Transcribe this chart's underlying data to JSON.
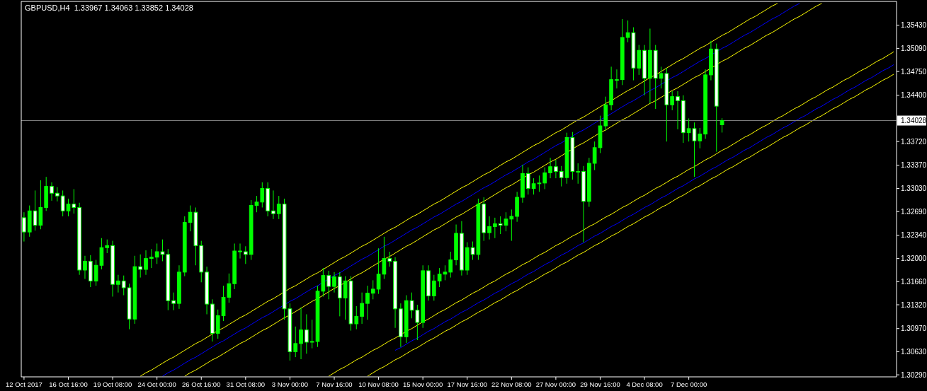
{
  "chart_data": {
    "type": "candlestick",
    "title": "GBPUSD,H4  1.33967 1.34063 1.33852 1.34028",
    "color": "#00ff00",
    "categories": [
      "12 Oct 2017",
      null,
      null,
      null,
      null,
      null,
      null,
      null,
      "16 Oct 16:00",
      null,
      null,
      null,
      null,
      null,
      null,
      null,
      "19 Oct 08:00",
      null,
      null,
      null,
      null,
      null,
      null,
      null,
      "24 Oct 00:00",
      null,
      null,
      null,
      null,
      null,
      null,
      null,
      "26 Oct 16:00",
      null,
      null,
      null,
      null,
      null,
      null,
      null,
      "31 Oct 08:00",
      null,
      null,
      null,
      null,
      null,
      null,
      null,
      "3 Nov 00:00",
      null,
      null,
      null,
      null,
      null,
      null,
      null,
      "7 Nov 16:00",
      null,
      null,
      null,
      null,
      null,
      null,
      null,
      "10 Nov 08:00",
      null,
      null,
      null,
      null,
      null,
      null,
      null,
      "15 Nov 00:00",
      null,
      null,
      null,
      null,
      null,
      null,
      null,
      "17 Nov 16:00",
      null,
      null,
      null,
      null,
      null,
      null,
      null,
      "22 Nov 08:00",
      null,
      null,
      null,
      null,
      null,
      null,
      null,
      "27 Nov 00:00",
      null,
      null,
      null,
      null,
      null,
      null,
      null,
      "29 Nov 16:00",
      null,
      null,
      null,
      null,
      null,
      null,
      null,
      "4 Dec 08:00",
      null,
      null,
      null,
      null,
      null,
      null,
      null,
      "7 Dec 00:00",
      null,
      null,
      null,
      null,
      null,
      null,
      null,
      null,
      null,
      null,
      null,
      null,
      null,
      null,
      null,
      null,
      null,
      null,
      null,
      null,
      null,
      null,
      null,
      null,
      null,
      null,
      null,
      null,
      null,
      null,
      null,
      null,
      null,
      null,
      null,
      null,
      null
    ],
    "ohlc": [
      [
        1.326,
        1.3268,
        1.3225,
        1.3239
      ],
      [
        1.3239,
        1.3278,
        1.3232,
        1.327
      ],
      [
        1.327,
        1.33,
        1.3241,
        1.3249
      ],
      [
        1.3249,
        1.3315,
        1.3243,
        1.3275
      ],
      [
        1.3275,
        1.332,
        1.327,
        1.3306
      ],
      [
        1.3306,
        1.3312,
        1.3285,
        1.3296
      ],
      [
        1.3296,
        1.3305,
        1.3284,
        1.3292
      ],
      [
        1.3292,
        1.33,
        1.3262,
        1.327
      ],
      [
        1.327,
        1.3288,
        1.3262,
        1.328
      ],
      [
        1.328,
        1.3302,
        1.3266,
        1.3275
      ],
      [
        1.3275,
        1.3282,
        1.3176,
        1.3183
      ],
      [
        1.3183,
        1.3204,
        1.317,
        1.3196
      ],
      [
        1.3196,
        1.3205,
        1.3158,
        1.3167
      ],
      [
        1.3167,
        1.3198,
        1.316,
        1.319
      ],
      [
        1.319,
        1.323,
        1.3184,
        1.3216
      ],
      [
        1.3216,
        1.3228,
        1.3208,
        1.3219
      ],
      [
        1.3219,
        1.3226,
        1.3144,
        1.3162
      ],
      [
        1.3162,
        1.3176,
        1.315,
        1.3167
      ],
      [
        1.3167,
        1.3175,
        1.3146,
        1.3157
      ],
      [
        1.3157,
        1.3163,
        1.3096,
        1.3111
      ],
      [
        1.3111,
        1.3204,
        1.3104,
        1.3188
      ],
      [
        1.3188,
        1.3206,
        1.3172,
        1.3184
      ],
      [
        1.3184,
        1.3212,
        1.3176,
        1.32
      ],
      [
        1.32,
        1.3214,
        1.3186,
        1.3202
      ],
      [
        1.3202,
        1.3222,
        1.3192,
        1.321
      ],
      [
        1.321,
        1.3228,
        1.3196,
        1.3206
      ],
      [
        1.3206,
        1.3214,
        1.3124,
        1.3138
      ],
      [
        1.3138,
        1.315,
        1.3124,
        1.3134
      ],
      [
        1.3134,
        1.319,
        1.3126,
        1.318
      ],
      [
        1.318,
        1.3262,
        1.3174,
        1.3253
      ],
      [
        1.3253,
        1.3278,
        1.324,
        1.3268
      ],
      [
        1.3268,
        1.3275,
        1.319,
        1.3219
      ],
      [
        1.3219,
        1.3226,
        1.3165,
        1.318
      ],
      [
        1.318,
        1.3188,
        1.3118,
        1.3133
      ],
      [
        1.3133,
        1.314,
        1.3078,
        1.309
      ],
      [
        1.309,
        1.3125,
        1.3082,
        1.3116
      ],
      [
        1.3116,
        1.316,
        1.3108,
        1.3143
      ],
      [
        1.3143,
        1.3178,
        1.3135,
        1.3163
      ],
      [
        1.3163,
        1.3222,
        1.3155,
        1.3211
      ],
      [
        1.3211,
        1.3222,
        1.32,
        1.321
      ],
      [
        1.321,
        1.3218,
        1.3192,
        1.3206
      ],
      [
        1.3206,
        1.3286,
        1.3198,
        1.3278
      ],
      [
        1.3278,
        1.3292,
        1.3268,
        1.3283
      ],
      [
        1.3283,
        1.3312,
        1.3275,
        1.3303
      ],
      [
        1.3303,
        1.3312,
        1.3262,
        1.327
      ],
      [
        1.327,
        1.33,
        1.3258,
        1.3266
      ],
      [
        1.3266,
        1.3292,
        1.3258,
        1.328
      ],
      [
        1.328,
        1.3288,
        1.311,
        1.3126
      ],
      [
        1.3126,
        1.3134,
        1.305,
        1.3063
      ],
      [
        1.3063,
        1.31,
        1.3055,
        1.3075
      ],
      [
        1.3075,
        1.3128,
        1.3052,
        1.3095
      ],
      [
        1.3095,
        1.3118,
        1.306,
        1.3077
      ],
      [
        1.3077,
        1.311,
        1.3068,
        1.3078
      ],
      [
        1.3078,
        1.316,
        1.307,
        1.3152
      ],
      [
        1.3152,
        1.3186,
        1.3144,
        1.3175
      ],
      [
        1.3175,
        1.3182,
        1.314,
        1.3159
      ],
      [
        1.3159,
        1.318,
        1.315,
        1.3173
      ],
      [
        1.3173,
        1.318,
        1.3115,
        1.3142
      ],
      [
        1.3142,
        1.3174,
        1.311,
        1.3167
      ],
      [
        1.3167,
        1.3174,
        1.3094,
        1.3104
      ],
      [
        1.3104,
        1.313,
        1.3096,
        1.3115
      ],
      [
        1.3115,
        1.315,
        1.3104,
        1.3134
      ],
      [
        1.3134,
        1.316,
        1.311,
        1.3149
      ],
      [
        1.3149,
        1.3168,
        1.314,
        1.3155
      ],
      [
        1.3155,
        1.3215,
        1.3148,
        1.3177
      ],
      [
        1.3177,
        1.3232,
        1.317,
        1.32
      ],
      [
        1.32,
        1.321,
        1.3188,
        1.3196
      ],
      [
        1.3196,
        1.3202,
        1.3098,
        1.3126
      ],
      [
        1.3126,
        1.3134,
        1.307,
        1.3085
      ],
      [
        1.3085,
        1.3146,
        1.3076,
        1.3138
      ],
      [
        1.3138,
        1.315,
        1.3112,
        1.3124
      ],
      [
        1.3124,
        1.3132,
        1.308,
        1.3106
      ],
      [
        1.3106,
        1.319,
        1.3098,
        1.3182
      ],
      [
        1.3182,
        1.319,
        1.3138,
        1.3145
      ],
      [
        1.3145,
        1.3176,
        1.3138,
        1.3167
      ],
      [
        1.3167,
        1.3186,
        1.3158,
        1.3177
      ],
      [
        1.3177,
        1.319,
        1.3168,
        1.318
      ],
      [
        1.318,
        1.321,
        1.3172,
        1.3198
      ],
      [
        1.3198,
        1.325,
        1.319,
        1.3237
      ],
      [
        1.3237,
        1.3255,
        1.3175,
        1.3183
      ],
      [
        1.3183,
        1.3224,
        1.3176,
        1.3216
      ],
      [
        1.3216,
        1.3225,
        1.3198,
        1.3206
      ],
      [
        1.3206,
        1.3288,
        1.3198,
        1.328
      ],
      [
        1.328,
        1.329,
        1.3226,
        1.3238
      ],
      [
        1.3238,
        1.3262,
        1.3228,
        1.3247
      ],
      [
        1.3247,
        1.326,
        1.323,
        1.3251
      ],
      [
        1.3251,
        1.3262,
        1.3236,
        1.3249
      ],
      [
        1.3249,
        1.3268,
        1.324,
        1.3258
      ],
      [
        1.3258,
        1.3272,
        1.3226,
        1.3262
      ],
      [
        1.3262,
        1.3298,
        1.3254,
        1.329
      ],
      [
        1.329,
        1.3338,
        1.3282,
        1.3325
      ],
      [
        1.3325,
        1.3334,
        1.3294,
        1.3303
      ],
      [
        1.3303,
        1.3318,
        1.3294,
        1.331
      ],
      [
        1.331,
        1.3322,
        1.3298,
        1.3311
      ],
      [
        1.3311,
        1.3334,
        1.3302,
        1.3326
      ],
      [
        1.3326,
        1.3348,
        1.3318,
        1.3335
      ],
      [
        1.3335,
        1.3345,
        1.3318,
        1.3328
      ],
      [
        1.3328,
        1.3336,
        1.3306,
        1.3319
      ],
      [
        1.3319,
        1.3385,
        1.331,
        1.3378
      ],
      [
        1.3378,
        1.3386,
        1.3316,
        1.3328
      ],
      [
        1.3328,
        1.334,
        1.331,
        1.3328
      ],
      [
        1.3328,
        1.3336,
        1.3224,
        1.3284
      ],
      [
        1.3284,
        1.3348,
        1.3276,
        1.334
      ],
      [
        1.334,
        1.3372,
        1.333,
        1.3363
      ],
      [
        1.3363,
        1.341,
        1.3355,
        1.3395
      ],
      [
        1.3395,
        1.3438,
        1.3388,
        1.3426
      ],
      [
        1.3426,
        1.3482,
        1.3418,
        1.3463
      ],
      [
        1.3463,
        1.3478,
        1.345,
        1.3463
      ],
      [
        1.3463,
        1.3552,
        1.3455,
        1.3525
      ],
      [
        1.3525,
        1.355,
        1.3518,
        1.3532
      ],
      [
        1.3532,
        1.354,
        1.3462,
        1.348
      ],
      [
        1.348,
        1.3514,
        1.347,
        1.3506
      ],
      [
        1.3506,
        1.3514,
        1.344,
        1.3465
      ],
      [
        1.3465,
        1.3538,
        1.3428,
        1.3506
      ],
      [
        1.3506,
        1.3514,
        1.342,
        1.3465
      ],
      [
        1.3465,
        1.3482,
        1.345,
        1.3472
      ],
      [
        1.3472,
        1.348,
        1.3372,
        1.3426
      ],
      [
        1.3426,
        1.3446,
        1.3418,
        1.3438
      ],
      [
        1.3438,
        1.3446,
        1.339,
        1.3432
      ],
      [
        1.3432,
        1.344,
        1.337,
        1.3385
      ],
      [
        1.3385,
        1.3406,
        1.3372,
        1.3391
      ],
      [
        1.3391,
        1.34,
        1.332,
        1.3373
      ],
      [
        1.3373,
        1.3392,
        1.3362,
        1.3383
      ],
      [
        1.3383,
        1.3478,
        1.3376,
        1.347
      ],
      [
        1.347,
        1.352,
        1.3462,
        1.3508
      ],
      [
        1.3508,
        1.3516,
        1.3357,
        1.3424
      ],
      [
        1.33967,
        1.34063,
        1.33852,
        1.34028
      ],
      null,
      null,
      null,
      null,
      null,
      null,
      null,
      null,
      null,
      null,
      null,
      null,
      null,
      null,
      null,
      null,
      null,
      null,
      null,
      null,
      null,
      null,
      null,
      null,
      null,
      null,
      null,
      null,
      null,
      null,
      null
    ],
    "series": [
      {
        "type": "line",
        "color": "#ffff00",
        "values": [
          null,
          null,
          null,
          null,
          null,
          null,
          null,
          null,
          null,
          null,
          null,
          null,
          null,
          null,
          null,
          null,
          null,
          null,
          null,
          null,
          null,
          1.3027,
          1.3032,
          1.3036,
          1.3041,
          1.3046,
          1.3051,
          1.3055,
          1.306,
          1.3065,
          1.307,
          1.3075,
          1.3079,
          1.3084,
          1.3089,
          1.3094,
          1.3098,
          1.3103,
          1.3108,
          1.3113,
          1.3117,
          1.3122,
          1.3127,
          1.3132,
          1.3137,
          1.3141,
          1.3146,
          1.3151,
          1.3156,
          1.316,
          1.3165,
          1.317,
          1.3175,
          1.3179,
          1.3184,
          1.3189,
          1.3194,
          1.3199,
          1.3203,
          1.3208,
          1.3213,
          1.3218,
          1.3222,
          1.3227,
          1.3232,
          1.3237,
          1.3242,
          1.3246,
          1.3251,
          1.3256,
          1.3261,
          1.3265,
          1.327,
          1.3275,
          1.328,
          1.3284,
          1.3289,
          1.3294,
          1.3299,
          1.3304,
          1.3308,
          1.3313,
          1.3318,
          1.3323,
          1.3327,
          1.3332,
          1.3337,
          1.3342,
          1.3346,
          1.3351,
          1.3356,
          1.3361,
          1.3366,
          1.337,
          1.3375,
          1.338,
          1.3385,
          1.3389,
          1.3394,
          1.3399,
          1.3404,
          1.3408,
          1.3413,
          1.3418,
          1.3423,
          1.3428,
          1.3432,
          1.3437,
          1.3442,
          1.3447,
          1.3451,
          1.3456,
          1.3461,
          1.3466,
          1.347,
          1.3475,
          1.348,
          1.3485,
          1.349,
          1.3494,
          1.3499,
          1.3504,
          1.3509,
          1.3513,
          1.3518,
          1.3523,
          1.3528,
          1.3532,
          1.3537,
          1.3542,
          1.3547,
          1.3552,
          1.3556,
          1.3561,
          1.3566,
          1.3571,
          1.3575,
          null,
          null,
          null,
          null,
          null,
          null,
          null,
          null,
          null,
          null,
          null,
          null,
          null,
          null,
          null,
          null,
          null,
          null,
          null,
          null,
          null
        ]
      },
      {
        "type": "line",
        "color": "#0000ff",
        "values": [
          null,
          null,
          null,
          null,
          null,
          null,
          null,
          null,
          null,
          null,
          null,
          null,
          null,
          null,
          null,
          null,
          null,
          null,
          null,
          null,
          null,
          null,
          null,
          null,
          null,
          1.3027,
          1.3032,
          1.3036,
          1.3041,
          1.3046,
          1.3051,
          1.3055,
          1.306,
          1.3065,
          1.307,
          1.3075,
          1.3079,
          1.3084,
          1.3089,
          1.3094,
          1.3098,
          1.3103,
          1.3108,
          1.3113,
          1.3117,
          1.3122,
          1.3127,
          1.3132,
          1.3137,
          1.3141,
          1.3146,
          1.3151,
          1.3156,
          1.316,
          1.3165,
          1.317,
          1.3175,
          1.3179,
          1.3184,
          1.3189,
          1.3194,
          1.3199,
          1.3203,
          1.3208,
          1.3213,
          1.3218,
          1.3222,
          1.3227,
          1.3232,
          1.3237,
          1.3242,
          1.3246,
          1.3251,
          1.3256,
          1.3261,
          1.3265,
          1.327,
          1.3275,
          1.328,
          1.3284,
          1.3289,
          1.3294,
          1.3299,
          1.3304,
          1.3308,
          1.3313,
          1.3318,
          1.3323,
          1.3327,
          1.3332,
          1.3337,
          1.3342,
          1.3346,
          1.3351,
          1.3356,
          1.3361,
          1.3366,
          1.337,
          1.3375,
          1.338,
          1.3385,
          1.3389,
          1.3394,
          1.3399,
          1.3404,
          1.3408,
          1.3413,
          1.3418,
          1.3423,
          1.3428,
          1.3432,
          1.3437,
          1.3442,
          1.3447,
          1.3451,
          1.3456,
          1.3461,
          1.3466,
          1.347,
          1.3475,
          1.348,
          1.3485,
          1.349,
          1.3494,
          1.3499,
          1.3504,
          1.3509,
          1.3513,
          1.3518,
          1.3523,
          1.3528,
          1.3532,
          1.3537,
          1.3542,
          1.3547,
          1.3552,
          1.3556,
          1.3561,
          1.3566,
          1.3571,
          1.3575,
          null,
          null,
          null,
          null,
          null,
          null,
          null,
          null,
          null,
          null,
          null,
          null,
          null,
          null,
          null,
          null,
          null
        ]
      },
      {
        "type": "line",
        "color": "#ffff00",
        "values": [
          null,
          null,
          null,
          null,
          null,
          null,
          null,
          null,
          null,
          null,
          null,
          null,
          null,
          null,
          null,
          null,
          null,
          null,
          null,
          null,
          null,
          null,
          null,
          null,
          null,
          null,
          null,
          null,
          null,
          1.3027,
          1.3032,
          1.3036,
          1.3041,
          1.3046,
          1.3051,
          1.3055,
          1.306,
          1.3065,
          1.307,
          1.3075,
          1.3079,
          1.3084,
          1.3089,
          1.3094,
          1.3098,
          1.3103,
          1.3108,
          1.3113,
          1.3117,
          1.3122,
          1.3127,
          1.3132,
          1.3137,
          1.3141,
          1.3146,
          1.3151,
          1.3156,
          1.316,
          1.3165,
          1.317,
          1.3175,
          1.3179,
          1.3184,
          1.3189,
          1.3194,
          1.3199,
          1.3203,
          1.3208,
          1.3213,
          1.3218,
          1.3222,
          1.3227,
          1.3232,
          1.3237,
          1.3242,
          1.3246,
          1.3251,
          1.3256,
          1.3261,
          1.3265,
          1.327,
          1.3275,
          1.328,
          1.3284,
          1.3289,
          1.3294,
          1.3299,
          1.3304,
          1.3308,
          1.3313,
          1.3318,
          1.3323,
          1.3327,
          1.3332,
          1.3337,
          1.3342,
          1.3346,
          1.3351,
          1.3356,
          1.3361,
          1.3366,
          1.337,
          1.3375,
          1.338,
          1.3385,
          1.3389,
          1.3394,
          1.3399,
          1.3404,
          1.3408,
          1.3413,
          1.3418,
          1.3423,
          1.3428,
          1.3432,
          1.3437,
          1.3442,
          1.3447,
          1.3451,
          1.3456,
          1.3461,
          1.3466,
          1.347,
          1.3475,
          1.348,
          1.3485,
          1.349,
          1.3494,
          1.3499,
          1.3504,
          1.3509,
          1.3513,
          1.3518,
          1.3523,
          1.3528,
          1.3532,
          1.3537,
          1.3542,
          1.3547,
          1.3552,
          1.3556,
          1.3561,
          1.3566,
          1.3571,
          1.3575,
          null,
          null,
          null,
          null,
          null,
          null,
          null,
          null,
          null,
          null,
          null,
          null,
          null
        ]
      },
      {
        "type": "line",
        "color": "#ffff00",
        "values": [
          null,
          null,
          null,
          null,
          null,
          null,
          null,
          null,
          null,
          null,
          null,
          null,
          null,
          null,
          null,
          null,
          null,
          null,
          null,
          null,
          null,
          null,
          null,
          null,
          null,
          null,
          null,
          null,
          null,
          null,
          null,
          null,
          null,
          null,
          null,
          null,
          null,
          null,
          null,
          null,
          null,
          null,
          null,
          null,
          null,
          null,
          null,
          null,
          null,
          null,
          null,
          null,
          null,
          null,
          null,
          1.3027,
          1.3032,
          1.3037,
          1.3041,
          1.3046,
          1.3051,
          1.3055,
          1.306,
          1.3065,
          1.3069,
          1.3074,
          1.3079,
          1.3083,
          1.3088,
          1.3093,
          1.3097,
          1.3102,
          1.3107,
          1.3111,
          1.3116,
          1.3121,
          1.3125,
          1.313,
          1.3135,
          1.3139,
          1.3144,
          1.3149,
          1.3153,
          1.3158,
          1.3163,
          1.3167,
          1.3172,
          1.3177,
          1.3181,
          1.3186,
          1.3191,
          1.3195,
          1.32,
          1.3205,
          1.3209,
          1.3214,
          1.3219,
          1.3223,
          1.3228,
          1.3233,
          1.3237,
          1.3242,
          1.3247,
          1.3251,
          1.3256,
          1.3261,
          1.3265,
          1.327,
          1.3275,
          1.3279,
          1.3284,
          1.3289,
          1.3293,
          1.3298,
          1.3303,
          1.3307,
          1.3312,
          1.3317,
          1.3321,
          1.3326,
          1.3331,
          1.3335,
          1.334,
          1.3345,
          1.3349,
          1.3354,
          1.3359,
          1.3363,
          1.3368,
          1.3373,
          1.3378,
          1.3382,
          1.3387,
          1.3392,
          1.3396,
          1.3401,
          1.3406,
          1.341,
          1.3415,
          1.342,
          1.3424,
          1.3429,
          1.3434,
          1.3438,
          1.3443,
          1.3448,
          1.3452,
          1.3457,
          1.3462,
          1.3466,
          1.3471,
          1.3476,
          1.348,
          1.3485,
          1.349,
          1.3494,
          1.3499,
          1.3504
        ]
      },
      {
        "type": "line",
        "color": "#0000ff",
        "values": [
          null,
          null,
          null,
          null,
          null,
          null,
          null,
          null,
          null,
          null,
          null,
          null,
          null,
          null,
          null,
          null,
          null,
          null,
          null,
          null,
          null,
          null,
          null,
          null,
          null,
          null,
          null,
          null,
          null,
          null,
          null,
          null,
          null,
          null,
          null,
          null,
          null,
          null,
          null,
          null,
          null,
          null,
          null,
          null,
          null,
          null,
          null,
          null,
          null,
          null,
          null,
          null,
          null,
          null,
          null,
          null,
          null,
          null,
          null,
          null,
          null,
          null,
          null,
          null,
          null,
          null,
          null,
          1.3065,
          1.3069,
          1.3074,
          1.3079,
          1.3083,
          1.3088,
          1.3093,
          1.3097,
          1.3102,
          1.3107,
          1.3111,
          1.3116,
          1.3121,
          1.3125,
          1.313,
          1.3135,
          1.3139,
          1.3144,
          1.3149,
          1.3153,
          1.3158,
          1.3163,
          1.3167,
          1.3172,
          1.3177,
          1.3181,
          1.3186,
          1.3191,
          1.3195,
          1.32,
          1.3205,
          1.3209,
          1.3214,
          1.3219,
          1.3223,
          1.3228,
          1.3233,
          1.3237,
          1.3242,
          1.3247,
          1.3251,
          1.3256,
          1.3261,
          1.3265,
          1.327,
          1.3275,
          1.3279,
          1.3284,
          1.3289,
          1.3293,
          1.3298,
          1.3303,
          1.3307,
          1.3312,
          1.3317,
          1.3321,
          1.3326,
          1.3331,
          1.3335,
          1.334,
          1.3345,
          1.3349,
          1.3354,
          1.3359,
          1.3363,
          1.3368,
          1.3373,
          1.3378,
          1.3382,
          1.3387,
          1.3392,
          1.3396,
          1.3401,
          1.3406,
          1.341,
          1.3415,
          1.342,
          1.3424,
          1.3429,
          1.3434,
          1.3438,
          1.3443,
          1.3448,
          1.3452,
          1.3457,
          1.3462,
          1.3466,
          1.3471,
          1.3476,
          1.348,
          1.3485
        ]
      },
      {
        "type": "line",
        "color": "#ffff00",
        "values": [
          null,
          null,
          null,
          null,
          null,
          null,
          null,
          null,
          null,
          null,
          null,
          null,
          null,
          null,
          null,
          null,
          null,
          null,
          null,
          null,
          null,
          null,
          null,
          null,
          null,
          null,
          null,
          null,
          null,
          null,
          null,
          null,
          null,
          null,
          null,
          null,
          null,
          null,
          null,
          null,
          null,
          null,
          null,
          null,
          null,
          null,
          null,
          null,
          null,
          null,
          null,
          null,
          null,
          null,
          null,
          null,
          null,
          null,
          null,
          null,
          null,
          null,
          1.3027,
          1.3032,
          1.3037,
          1.3041,
          1.3046,
          1.3051,
          1.3055,
          1.306,
          1.3065,
          1.3069,
          1.3074,
          1.3079,
          1.3083,
          1.3088,
          1.3093,
          1.3097,
          1.3102,
          1.3107,
          1.3111,
          1.3116,
          1.3121,
          1.3125,
          1.313,
          1.3135,
          1.3139,
          1.3144,
          1.3149,
          1.3153,
          1.3158,
          1.3163,
          1.3167,
          1.3172,
          1.3177,
          1.3181,
          1.3186,
          1.3191,
          1.3195,
          1.32,
          1.3205,
          1.3209,
          1.3214,
          1.3219,
          1.3223,
          1.3228,
          1.3233,
          1.3237,
          1.3242,
          1.3247,
          1.3251,
          1.3256,
          1.3261,
          1.3265,
          1.327,
          1.3275,
          1.3279,
          1.3284,
          1.3289,
          1.3293,
          1.3298,
          1.3303,
          1.3307,
          1.3312,
          1.3317,
          1.3321,
          1.3326,
          1.3331,
          1.3335,
          1.334,
          1.3345,
          1.3349,
          1.3354,
          1.3359,
          1.3363,
          1.3368,
          1.3373,
          1.3378,
          1.3382,
          1.3387,
          1.3392,
          1.3396,
          1.3401,
          1.3406,
          1.341,
          1.3415,
          1.342,
          1.3424,
          1.3429,
          1.3434,
          1.3438,
          1.3443,
          1.3448,
          1.3452,
          1.3457,
          1.3462,
          1.3466,
          1.3471
        ]
      }
    ],
    "ref_lines": [
      {
        "axis": "y",
        "value": 1.34028,
        "label": "1.34028",
        "color": "#808080"
      }
    ],
    "ylim": [
      1.3026,
      1.3578
    ],
    "yticks": [
      {
        "value": 1.3543,
        "label": "1.35430"
      },
      {
        "value": 1.3509,
        "label": "1.35090"
      },
      {
        "value": 1.3475,
        "label": "1.34750"
      },
      {
        "value": 1.344,
        "label": "1.34400"
      },
      {
        "value": 1.3372,
        "label": "1.33720"
      },
      {
        "value": 1.3337,
        "label": "1.33370"
      },
      {
        "value": 1.3303,
        "label": "1.33030"
      },
      {
        "value": 1.3269,
        "label": "1.32690"
      },
      {
        "value": 1.3234,
        "label": "1.32340"
      },
      {
        "value": 1.32,
        "label": "1.32000"
      },
      {
        "value": 1.3166,
        "label": "1.31660"
      },
      {
        "value": 1.3132,
        "label": "1.31320"
      },
      {
        "value": 1.3097,
        "label": "1.30970"
      },
      {
        "value": 1.3063,
        "label": "1.30630"
      },
      {
        "value": 1.3029,
        "label": "1.30290"
      }
    ],
    "grid": false
  }
}
